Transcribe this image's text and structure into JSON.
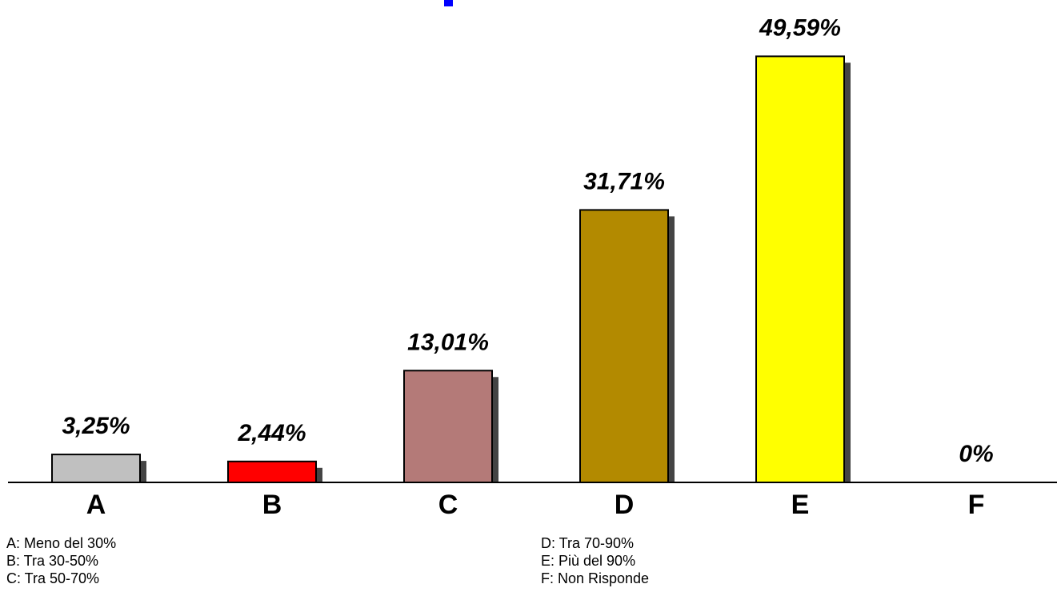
{
  "chart_data": {
    "type": "bar",
    "categories": [
      "A",
      "B",
      "C",
      "D",
      "E",
      "F"
    ],
    "values": [
      3.25,
      2.44,
      13.01,
      31.71,
      49.59,
      0
    ],
    "value_labels": [
      "3,25%",
      "2,44%",
      "13,01%",
      "31,71%",
      "49,59%",
      "0%"
    ],
    "colors": [
      "#c0c0c0",
      "#ff0000",
      "#b47a78",
      "#b38a00",
      "#ffff00",
      "#ffffff"
    ],
    "ylim": [
      0,
      50
    ],
    "grid": false,
    "legend_left": [
      "A: Meno del 30%",
      "B: Tra 30-50%",
      "C: Tra 50-70%"
    ],
    "legend_right": [
      "D: Tra 70-90%",
      "E: Più del 90%",
      "F: Non Risponde"
    ]
  }
}
